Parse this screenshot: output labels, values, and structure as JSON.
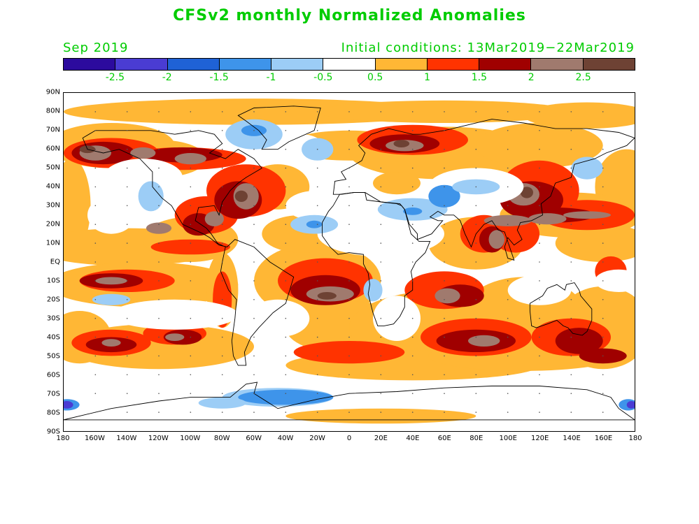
{
  "title": "CFSv2 monthly Normalized Anomalies",
  "valid_month": "Sep 2019",
  "initial_conditions": "Initial conditions: 13Mar2019−22Mar2019",
  "colorbar": {
    "colors": [
      "#2c0b9e",
      "#4a3cd3",
      "#1f62d6",
      "#3e94ea",
      "#9ccdf6",
      "#ffffff",
      "#ffb735",
      "#ff3300",
      "#a00000",
      "#a07a6e",
      "#6e4234"
    ],
    "labels": [
      "-2.5",
      "-2",
      "-1.5",
      "-1",
      "-0.5",
      "0.5",
      "1",
      "1.5",
      "2",
      "2.5"
    ]
  },
  "lat_labels": [
    "90N",
    "80N",
    "70N",
    "60N",
    "50N",
    "40N",
    "30N",
    "20N",
    "10N",
    "EQ",
    "10S",
    "20S",
    "30S",
    "40S",
    "50S",
    "60S",
    "70S",
    "80S",
    "90S"
  ],
  "lon_labels": [
    "180",
    "160W",
    "140W",
    "120W",
    "100W",
    "80W",
    "60W",
    "40W",
    "20W",
    "0",
    "20E",
    "40E",
    "60E",
    "80E",
    "100E",
    "120E",
    "140E",
    "160E",
    "180"
  ]
}
